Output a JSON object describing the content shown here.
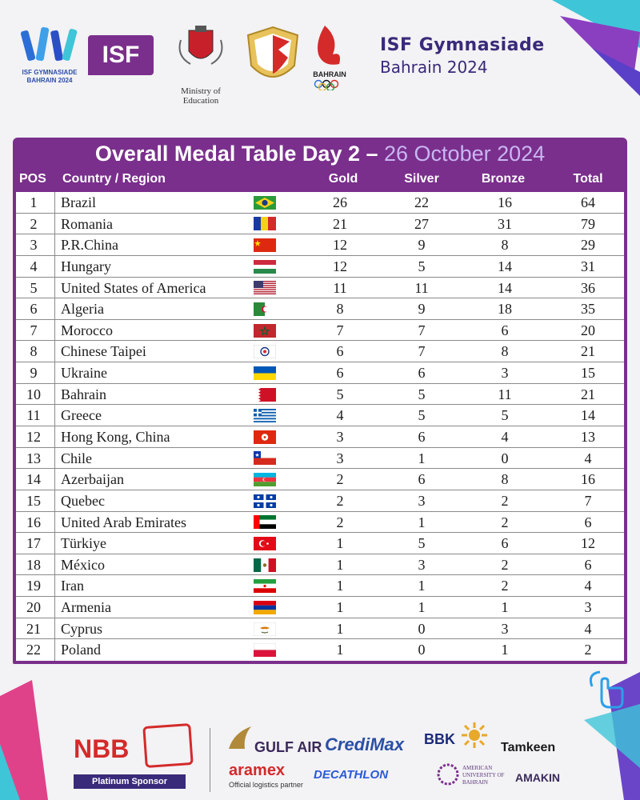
{
  "header": {
    "event_logo_text": "ISF GYMNASIADE BAHRAIN 2024",
    "isf_logo_text": "ISF",
    "ministry_text": "Ministry of Education",
    "bahrain_olympic_text": "BAHRAIN",
    "title": "ISF Gymnasiade",
    "subtitle": "Bahrain 2024"
  },
  "table": {
    "title": "Overall Medal Table Day 2 –",
    "date": "26 October 2024",
    "columns": {
      "pos": "POS",
      "country": "Country / Region",
      "gold": "Gold",
      "silver": "Silver",
      "bronze": "Bronze",
      "total": "Total"
    },
    "rows": [
      {
        "pos": "1",
        "country": "Brazil",
        "flag": "brazil-flag",
        "gold": "26",
        "silver": "22",
        "bronze": "16",
        "total": "64"
      },
      {
        "pos": "2",
        "country": "Romania",
        "flag": "romania-flag",
        "gold": "21",
        "silver": "27",
        "bronze": "31",
        "total": "79"
      },
      {
        "pos": "3",
        "country": "P.R.China",
        "flag": "china-flag",
        "gold": "12",
        "silver": "9",
        "bronze": "8",
        "total": "29"
      },
      {
        "pos": "4",
        "country": "Hungary",
        "flag": "hungary-flag",
        "gold": "12",
        "silver": "5",
        "bronze": "14",
        "total": "31"
      },
      {
        "pos": "5",
        "country": "United States of America",
        "flag": "usa-flag",
        "gold": "11",
        "silver": "11",
        "bronze": "14",
        "total": "36"
      },
      {
        "pos": "6",
        "country": "Algeria",
        "flag": "algeria-flag",
        "gold": "8",
        "silver": "9",
        "bronze": "18",
        "total": "35"
      },
      {
        "pos": "7",
        "country": "Morocco",
        "flag": "morocco-flag",
        "gold": "7",
        "silver": "7",
        "bronze": "6",
        "total": "20"
      },
      {
        "pos": "8",
        "country": "Chinese Taipei",
        "flag": "chinese-taipei-flag",
        "gold": "6",
        "silver": "7",
        "bronze": "8",
        "total": "21"
      },
      {
        "pos": "9",
        "country": "Ukraine",
        "flag": "ukraine-flag",
        "gold": "6",
        "silver": "6",
        "bronze": "3",
        "total": "15"
      },
      {
        "pos": "10",
        "country": "Bahrain",
        "flag": "bahrain-flag",
        "gold": "5",
        "silver": "5",
        "bronze": "11",
        "total": "21"
      },
      {
        "pos": "11",
        "country": "Greece",
        "flag": "greece-flag",
        "gold": "4",
        "silver": "5",
        "bronze": "5",
        "total": "14"
      },
      {
        "pos": "12",
        "country": "Hong Kong, China",
        "flag": "hong-kong-flag",
        "gold": "3",
        "silver": "6",
        "bronze": "4",
        "total": "13"
      },
      {
        "pos": "13",
        "country": "Chile",
        "flag": "chile-flag",
        "gold": "3",
        "silver": "1",
        "bronze": "0",
        "total": "4"
      },
      {
        "pos": "14",
        "country": "Azerbaijan",
        "flag": "azerbaijan-flag",
        "gold": "2",
        "silver": "6",
        "bronze": "8",
        "total": "16"
      },
      {
        "pos": "15",
        "country": "Quebec",
        "flag": "quebec-flag",
        "gold": "2",
        "silver": "3",
        "bronze": "2",
        "total": "7"
      },
      {
        "pos": "16",
        "country": "United Arab Emirates",
        "flag": "uae-flag",
        "gold": "2",
        "silver": "1",
        "bronze": "2",
        "total": "6"
      },
      {
        "pos": "17",
        "country": "Türkiye",
        "flag": "turkiye-flag",
        "gold": "1",
        "silver": "5",
        "bronze": "6",
        "total": "12"
      },
      {
        "pos": "18",
        "country": "México",
        "flag": "mexico-flag",
        "gold": "1",
        "silver": "3",
        "bronze": "2",
        "total": "6"
      },
      {
        "pos": "19",
        "country": "Iran",
        "flag": "iran-flag",
        "gold": "1",
        "silver": "1",
        "bronze": "2",
        "total": "4"
      },
      {
        "pos": "20",
        "country": "Armenia",
        "flag": "armenia-flag",
        "gold": "1",
        "silver": "1",
        "bronze": "1",
        "total": "3"
      },
      {
        "pos": "21",
        "country": "Cyprus",
        "flag": "cyprus-flag",
        "gold": "1",
        "silver": "0",
        "bronze": "3",
        "total": "4"
      },
      {
        "pos": "22",
        "country": "Poland",
        "flag": "poland-flag",
        "gold": "1",
        "silver": "0",
        "bronze": "1",
        "total": "2"
      }
    ]
  },
  "footer": {
    "nbb": "NBB",
    "platinum": "Platinum Sponsor",
    "gulf_air": "GULF AIR",
    "credimax": "CrediMax",
    "bbk": "BBK",
    "tamkeen": "Tamkeen",
    "aramex": "aramex",
    "aramex_sub": "Official logistics partner",
    "decathlon": "DECATHLON",
    "aub": "AMERICAN UNIVERSITY OF BAHRAIN",
    "amakin": "AMAKIN"
  },
  "colors": {
    "purple": "#7a2f8c",
    "navy": "#3a2a7a",
    "date": "#c9b6f2",
    "nbb_red": "#d42a2a"
  }
}
